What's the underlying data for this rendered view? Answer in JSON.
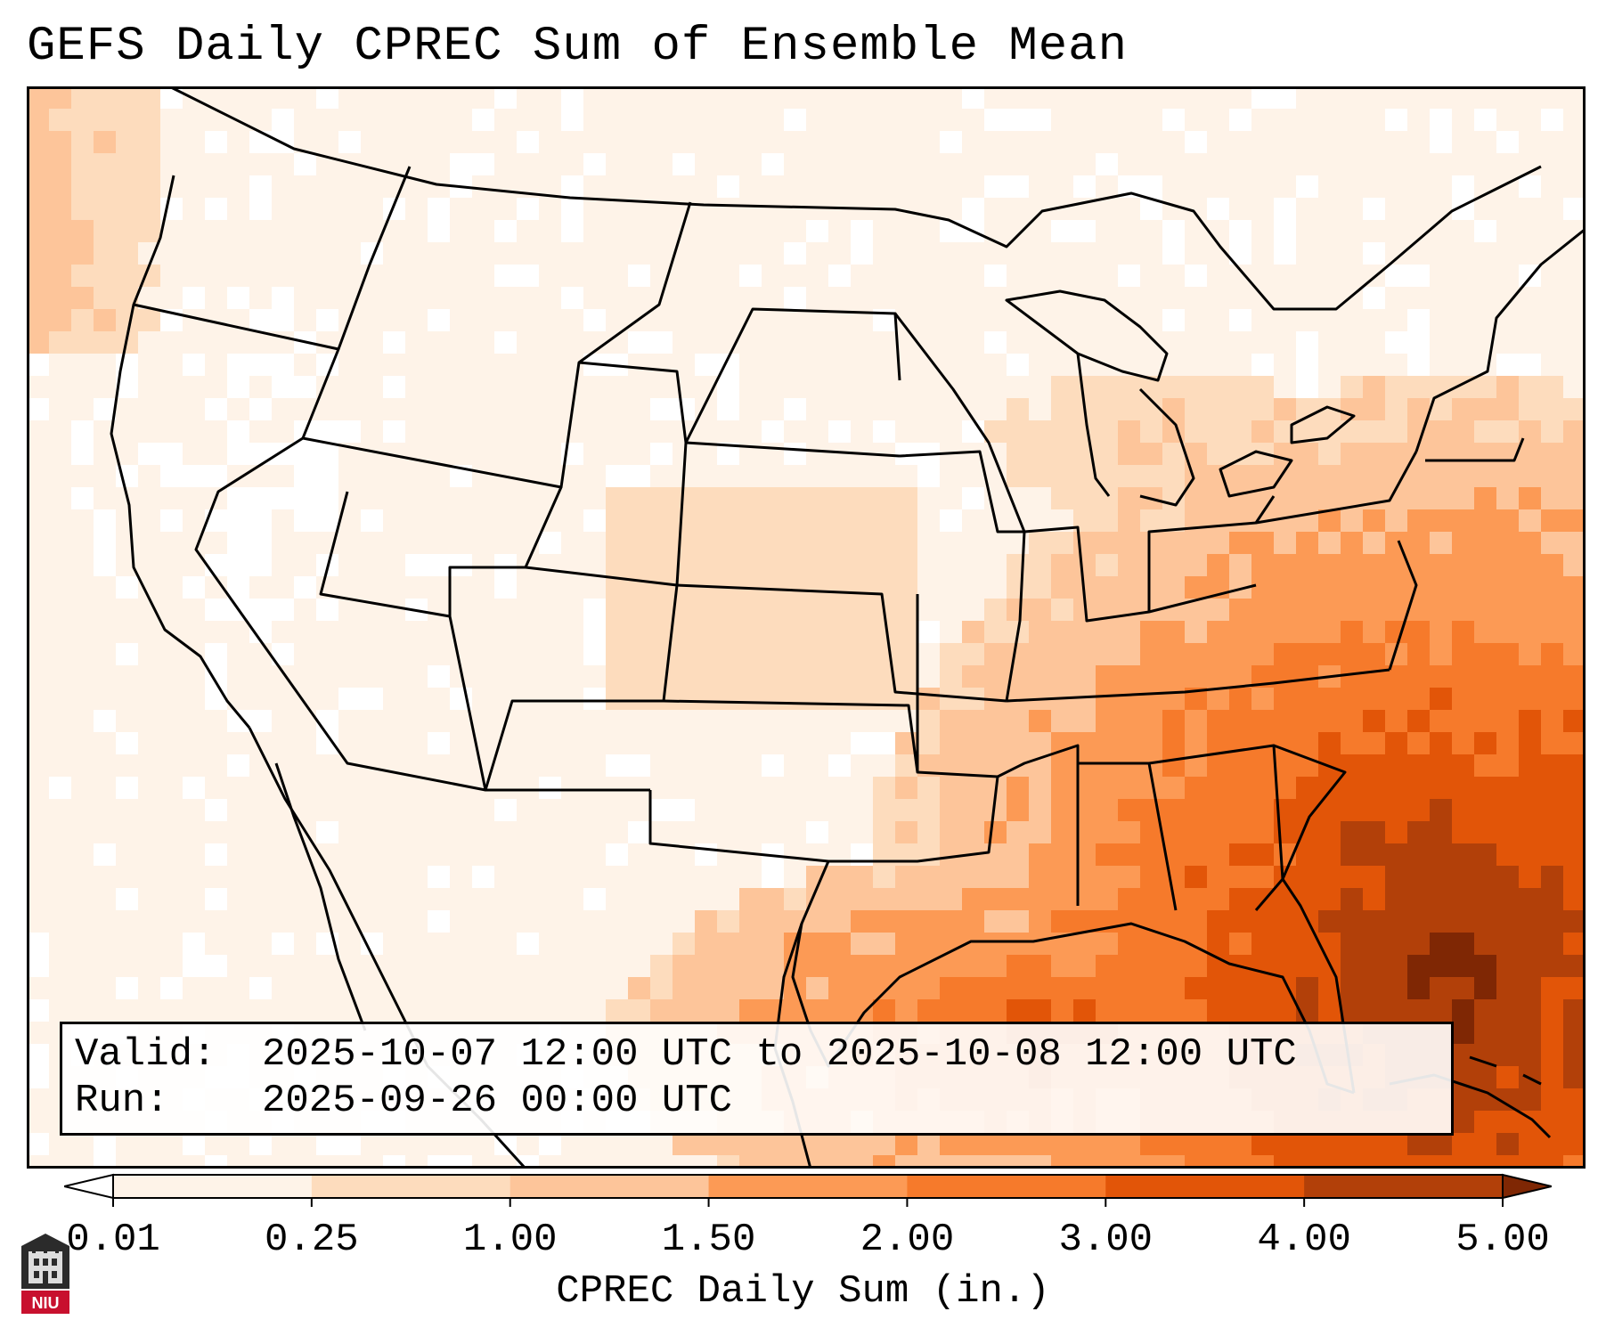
{
  "title": "GEFS Daily CPREC Sum of Ensemble Mean",
  "info": {
    "valid_label": "Valid:",
    "valid_value": "2025-10-07 12:00 UTC to 2025-10-08 12:00 UTC",
    "run_label": "Run:",
    "run_value": "2025-09-26 00:00 UTC"
  },
  "colorbar": {
    "label": "CPREC Daily Sum (in.)",
    "ticks": [
      "0.01",
      "0.25",
      "1.00",
      "1.50",
      "2.00",
      "3.00",
      "4.00",
      "5.00"
    ],
    "colors": [
      "#fef3e8",
      "#fddcbd",
      "#fdc59a",
      "#fc9a55",
      "#f67a2b",
      "#e25508",
      "#b24009",
      "#7f2704"
    ],
    "extend": "both"
  },
  "logo": {
    "text": "NIU",
    "color": "#c8102e"
  },
  "map": {
    "region": "Contiguous United States",
    "projection": "Lambert Conformal",
    "heaviest_precip_region": "Southeast US coast, Gulf of Mexico and western Atlantic"
  }
}
